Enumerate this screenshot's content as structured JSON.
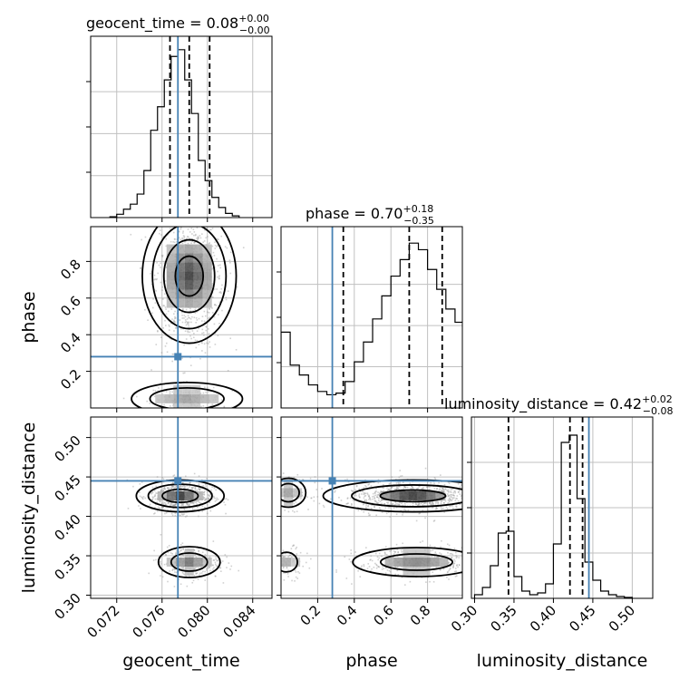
{
  "chart_data": {
    "type": "corner",
    "parameters": [
      "geocent_time",
      "phase",
      "luminosity_distance"
    ],
    "ranges": {
      "geocent_time": [
        0.0697,
        0.0857
      ],
      "phase": [
        0.0,
        0.99
      ],
      "luminosity_distance": [
        0.296,
        0.526
      ]
    },
    "ticks": {
      "geocent_time": [
        "0.072",
        "0.076",
        "0.080",
        "0.084"
      ],
      "phase": [
        "0.2",
        "0.4",
        "0.6",
        "0.8"
      ],
      "luminosity_distance_x": [
        "0.30",
        "0.35",
        "0.40",
        "0.45",
        "0.50"
      ],
      "luminosity_distance_y": [
        "0.30",
        "0.35",
        "0.40",
        "0.45",
        "0.50"
      ]
    },
    "truths": {
      "geocent_time": 0.0774,
      "phase": 0.28,
      "luminosity_distance": 0.445
    },
    "titles": {
      "geocent_time": {
        "name": "geocent_time",
        "value": "0.08",
        "plus": "+0.00",
        "minus": "−0.00"
      },
      "phase": {
        "name": "phase",
        "value": "0.70",
        "plus": "+0.18",
        "minus": "−0.35"
      },
      "luminosity_distance": {
        "name": "luminosity_distance",
        "value": "0.42",
        "plus": "+0.02",
        "minus": "−0.08"
      }
    },
    "quantiles": {
      "geocent_time": [
        0.0767,
        0.0784,
        0.0802
      ],
      "phase": [
        0.34,
        0.7,
        0.88
      ],
      "luminosity_distance": [
        0.343,
        0.421,
        0.437
      ]
    },
    "histograms": {
      "geocent_time": {
        "edges_start": 0.0714,
        "bin_width": 0.0006,
        "values": [
          0.005,
          0.02,
          0.05,
          0.08,
          0.14,
          0.28,
          0.52,
          0.66,
          0.82,
          0.96,
          1.0,
          0.82,
          0.62,
          0.34,
          0.22,
          0.12,
          0.06,
          0.025,
          0.01
        ],
        "ymax": 1.08
      },
      "phase": {
        "edges_start": 0.0,
        "bin_width": 0.05,
        "values": [
          0.46,
          0.26,
          0.2,
          0.14,
          0.1,
          0.08,
          0.09,
          0.16,
          0.28,
          0.4,
          0.54,
          0.68,
          0.8,
          0.9,
          1.0,
          0.96,
          0.84,
          0.72,
          0.6,
          0.52
        ],
        "ymax": 1.1
      },
      "luminosity_distance": {
        "edges_start": 0.3,
        "bin_width": 0.01,
        "values": [
          0.02,
          0.06,
          0.18,
          0.36,
          0.37,
          0.12,
          0.04,
          0.02,
          0.03,
          0.08,
          0.3,
          0.86,
          0.9,
          0.55,
          0.2,
          0.1,
          0.04,
          0.02,
          0.01,
          0.005
        ],
        "ymax": 1.0
      }
    },
    "grid": true
  }
}
